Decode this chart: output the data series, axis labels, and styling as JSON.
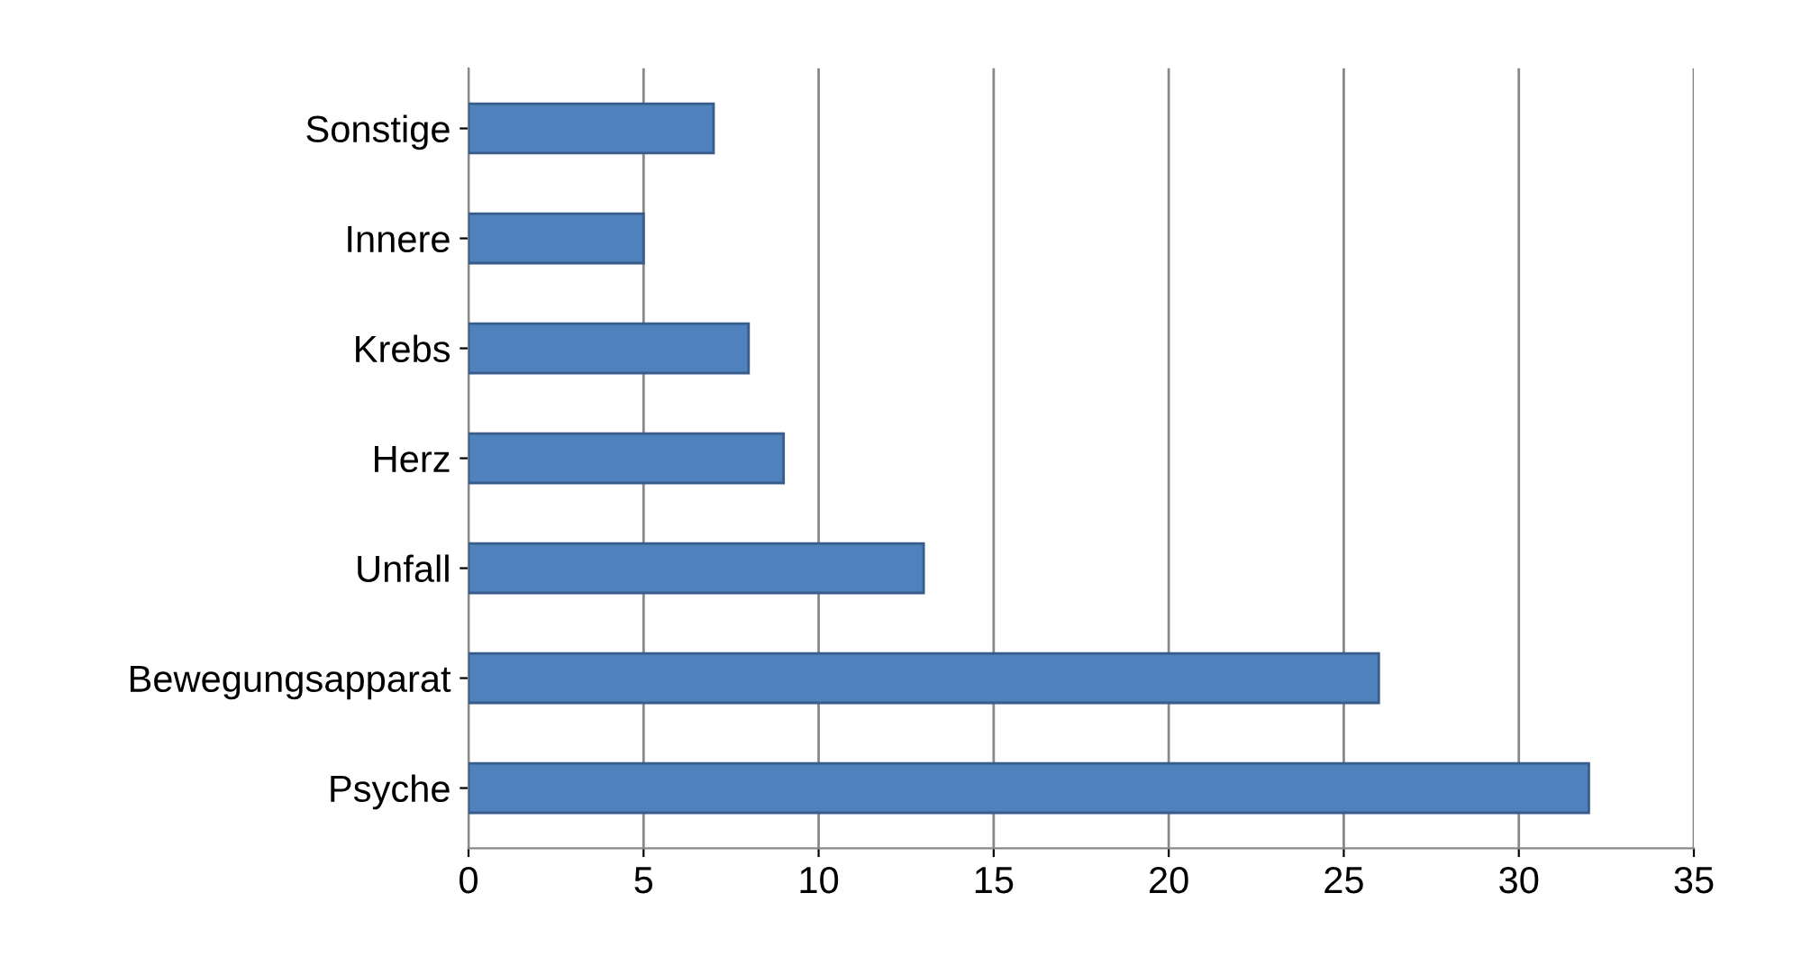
{
  "chart_data": {
    "type": "bar",
    "orientation": "horizontal",
    "categories": [
      "Sonstige",
      "Innere",
      "Krebs",
      "Herz",
      "Unfall",
      "Bewegungsapparat",
      "Psyche"
    ],
    "values": [
      7,
      5,
      8,
      9,
      13,
      26,
      32
    ],
    "color": "#4f81bd",
    "xlim": [
      0,
      35
    ],
    "xticks": [
      0,
      5,
      10,
      15,
      20,
      25,
      30,
      35
    ],
    "grid": "x"
  }
}
